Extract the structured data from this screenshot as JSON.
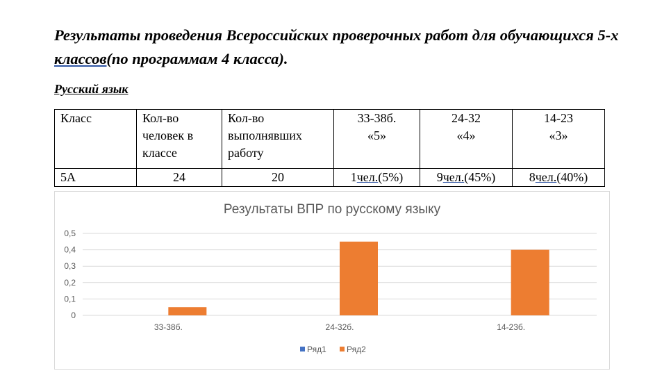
{
  "heading": {
    "part1": "Результаты проведения Всероссийских проверочных работ для обучающихся 5-х ",
    "underlined": "классов(",
    "part2": "по программам 4 класса)."
  },
  "subject": "Русский язык",
  "table": {
    "headers": [
      [
        "Класс"
      ],
      [
        "Кол-во",
        "человек в",
        "классе"
      ],
      [
        "Кол-во",
        "выполнявших",
        "работу"
      ],
      [
        "33-38б.",
        "«5»"
      ],
      [
        "24-32",
        "«4»"
      ],
      [
        "14-23",
        "«3»"
      ]
    ],
    "row": {
      "class": "5А",
      "students": "24",
      "participants": "20",
      "grade5": {
        "num": "1",
        "unit": "чел.",
        "pct": "(5%)"
      },
      "grade4": {
        "num": "9",
        "unit": "чел.",
        "pct": "(45%)"
      },
      "grade3": {
        "num": "8",
        "unit": "чел.",
        "pct": "(40%)"
      }
    }
  },
  "chart_data": {
    "type": "bar",
    "title": "Результаты ВПР по русскому языку",
    "categories": [
      "33-38б.",
      "24-32б.",
      "14-23б."
    ],
    "series": [
      {
        "name": "Ряд1",
        "values": [
          0,
          0,
          0
        ],
        "color": "#4472c4"
      },
      {
        "name": "Ряд2",
        "values": [
          0.05,
          0.45,
          0.4
        ],
        "color": "#ed7d31"
      }
    ],
    "yticks": [
      "0",
      "0,1",
      "0,2",
      "0,3",
      "0,4",
      "0,5"
    ],
    "ylim": [
      0,
      0.5
    ],
    "grid": true,
    "legend": "bottom",
    "xlabel": "",
    "ylabel": ""
  }
}
